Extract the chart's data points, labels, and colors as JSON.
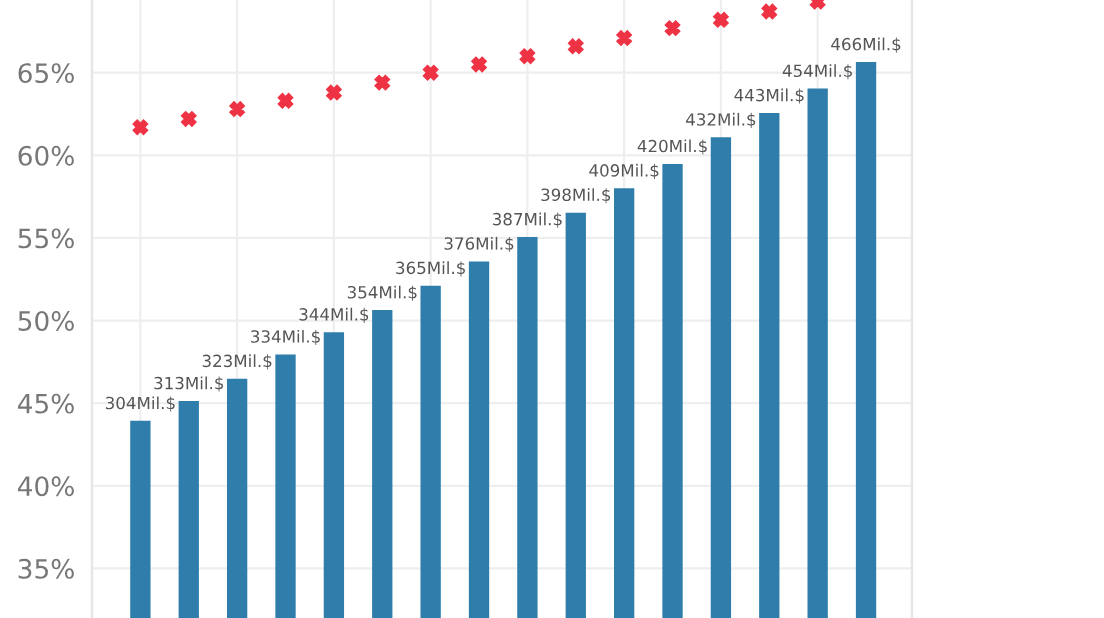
{
  "chart_data": {
    "type": "bar",
    "categories": [
      null,
      null,
      null,
      null,
      null,
      null,
      null,
      null,
      null,
      null,
      null,
      null,
      null,
      null,
      null,
      null
    ],
    "series": [
      {
        "axis": "y2",
        "color": "#2e7dab",
        "values": [
          304,
          313,
          323,
          334,
          344,
          354,
          365,
          376,
          387,
          398,
          409,
          420,
          432,
          443,
          454,
          466
        ],
        "value_labels": [
          "304Mil.$",
          "313Mil.$",
          "323Mil.$",
          "334Mil.$",
          "344Mil.$",
          "354Mil.$",
          "365Mil.$",
          "376Mil.$",
          "387Mil.$",
          "398Mil.$",
          "409Mil.$",
          "420Mil.$",
          "432Mil.$",
          "443Mil.$",
          "454Mil.$",
          "466Mil.$"
        ]
      },
      {
        "type": "scatter",
        "axis": "y",
        "color": "#ee3344",
        "marker": "cross",
        "values": [
          61.7,
          62.2,
          62.8,
          63.3,
          63.8,
          64.4,
          65.0,
          65.5,
          66.0,
          66.6,
          67.1,
          67.7,
          68.2,
          68.7,
          69.3,
          null
        ]
      }
    ],
    "ylim": [
      32,
      69.4
    ],
    "yticks": [
      {
        "value": 35,
        "label": "35%"
      },
      {
        "value": 40,
        "label": "40%"
      },
      {
        "value": 45,
        "label": "45%"
      },
      {
        "value": 50,
        "label": "50%"
      },
      {
        "value": 55,
        "label": "55%"
      },
      {
        "value": 60,
        "label": "60%"
      },
      {
        "value": 65,
        "label": "65%"
      }
    ],
    "y2lim": [
      215,
      494
    ],
    "tick_labels": "y",
    "grid": true,
    "legend": false
  }
}
